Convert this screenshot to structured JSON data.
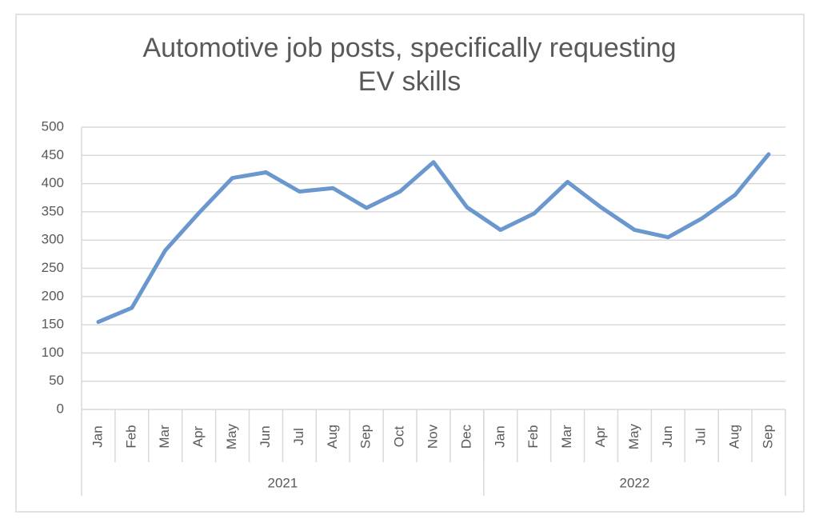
{
  "chart_data": {
    "type": "line",
    "title": [
      "Automotive job posts, specifically requesting",
      "EV skills"
    ],
    "groups": [
      {
        "name": "2021",
        "categories": [
          "Jan",
          "Feb",
          "Mar",
          "Apr",
          "May",
          "Jun",
          "Jul",
          "Aug",
          "Sep",
          "Oct",
          "Nov",
          "Dec"
        ]
      },
      {
        "name": "2022",
        "categories": [
          "Jan",
          "Feb",
          "Mar",
          "Apr",
          "May",
          "Jun",
          "Jul",
          "Aug",
          "Sep"
        ]
      }
    ],
    "values": [
      155,
      180,
      282,
      348,
      410,
      420,
      386,
      392,
      357,
      386,
      438,
      358,
      318,
      347,
      403,
      358,
      318,
      305,
      338,
      380,
      452
    ],
    "color": "#6b97cf",
    "ylim": [
      0,
      500
    ],
    "yticks": [
      0,
      50,
      100,
      150,
      200,
      250,
      300,
      350,
      400,
      450,
      500
    ],
    "grid": true
  }
}
